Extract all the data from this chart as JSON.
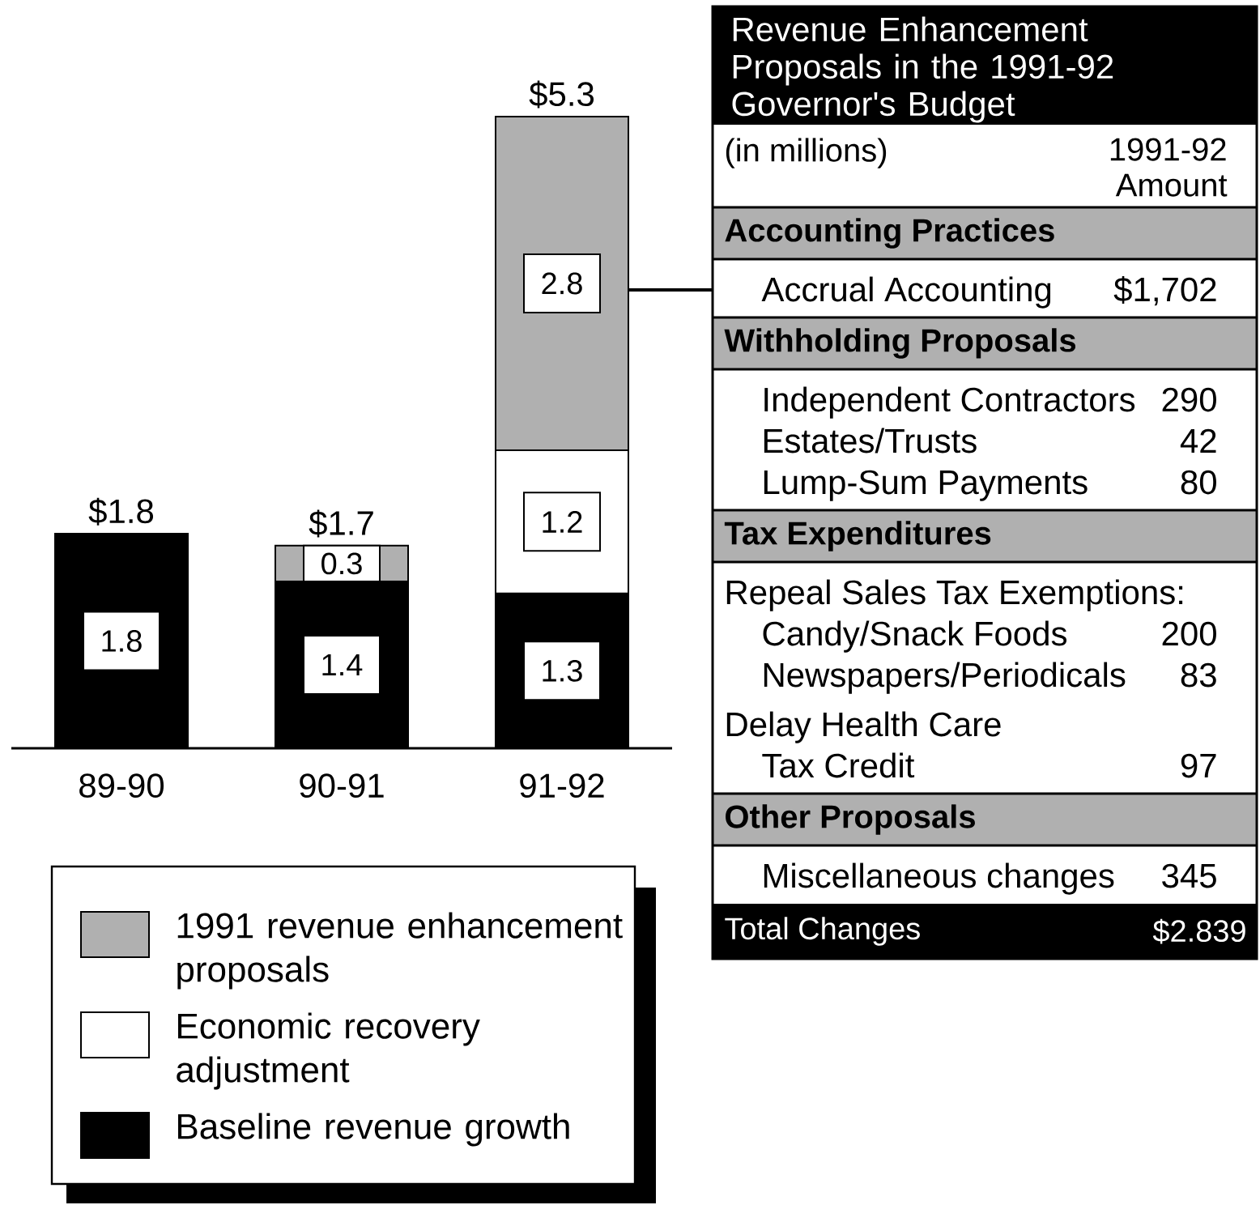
{
  "chart_data": [
    {
      "type": "bar",
      "stacked": true,
      "categories": [
        "89-90",
        "90-91",
        "91-92"
      ],
      "series": [
        {
          "name": "Baseline revenue growth",
          "color": "#000000",
          "values": [
            1.8,
            1.4,
            1.3
          ]
        },
        {
          "name": "Economic recovery adjustment",
          "color": "#ffffff",
          "values": [
            null,
            null,
            1.2
          ]
        },
        {
          "name": "1991 revenue enhancement proposals",
          "color": "#b0b0b0",
          "values": [
            null,
            0.3,
            2.8
          ]
        }
      ],
      "data_labels": true,
      "totals": [
        "$1.8",
        "$1.7",
        "$5.3"
      ],
      "legend": "bottom",
      "tick_labels": "x"
    },
    {
      "type": "other",
      "title": "Revenue Enhancement Proposals in the 1991-92 Governor's Budget",
      "annotations": [
        "(in millions)",
        "1991-92 Amount"
      ]
    },
    {
      "type": "other",
      "title": "Accounting Practices",
      "categories": [
        "Accrual Accounting"
      ],
      "values": [
        1702
      ],
      "value_labels": [
        "$1,702"
      ]
    },
    {
      "type": "other",
      "title": "Withholding Proposals",
      "categories": [
        "Independent Contractors",
        "Estates/Trusts",
        "Lump-Sum Payments"
      ],
      "values": [
        290,
        42,
        80
      ],
      "data_labels": true
    },
    {
      "type": "other",
      "title": "Tax Expenditures",
      "subtitle": "Repeal Sales Tax Exemptions:",
      "categories": [
        "Candy/Snack Foods",
        "Newspapers/Periodicals",
        "Delay Health Care",
        "Tax Credit"
      ],
      "values": [
        200,
        83,
        null,
        97
      ],
      "data_labels": true
    },
    {
      "type": "other",
      "title": "Other Proposals",
      "categories": [
        "Miscellaneous changes"
      ],
      "values": [
        345
      ],
      "data_labels": true
    },
    {
      "type": "other",
      "title": "Total Changes",
      "annotations": [
        "$2.839"
      ]
    }
  ]
}
